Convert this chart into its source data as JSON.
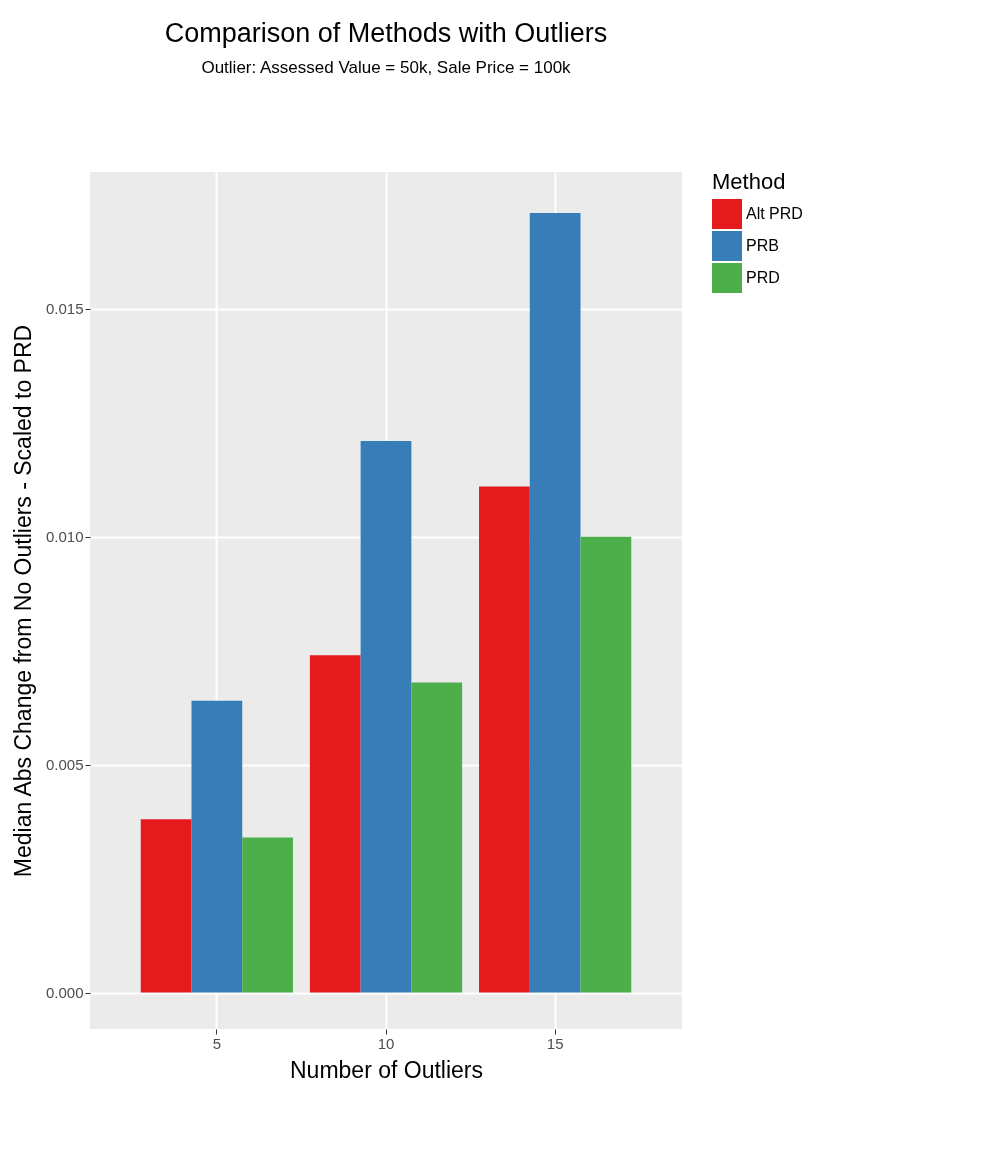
{
  "chart_data": {
    "type": "bar",
    "title": "Comparison of Methods with Outliers",
    "subtitle": "Outlier: Assessed Value = 50k, Sale Price = 100k",
    "xlabel": "Number of Outliers",
    "ylabel": "Median Abs Change from No Outliers - Scaled to PRD",
    "legend_title": "Method",
    "categories": [
      "5",
      "10",
      "15"
    ],
    "series": [
      {
        "name": "Alt PRD",
        "color": "#e41a1c",
        "values": [
          0.0038,
          0.0074,
          0.0111
        ]
      },
      {
        "name": "PRB",
        "color": "#377eb8",
        "values": [
          0.0064,
          0.0121,
          0.0171
        ]
      },
      {
        "name": "PRD",
        "color": "#4daf4a",
        "values": [
          0.0034,
          0.0068,
          0.01
        ]
      }
    ],
    "ylim": [
      -0.0008,
      0.018
    ],
    "yticks": [
      {
        "value": 0,
        "label": "0.000"
      },
      {
        "value": 0.005,
        "label": "0.005"
      },
      {
        "value": 0.01,
        "label": "0.010"
      },
      {
        "value": 0.015,
        "label": "0.015"
      }
    ],
    "grid": true,
    "legend": "right"
  }
}
